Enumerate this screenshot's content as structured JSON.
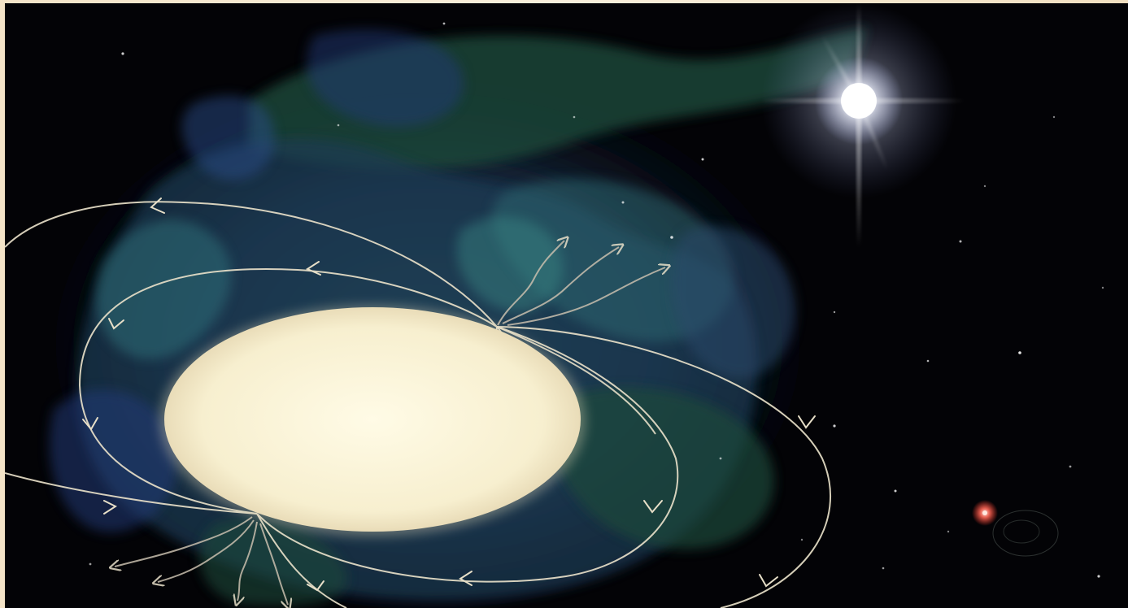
{
  "scene": {
    "colors": {
      "frame": "#f4e4c8",
      "space": "#030306",
      "star_core": "#fbf6dc",
      "field_line": "#e7dfc8",
      "nebula_green": "#1f4a3b",
      "nebula_blue": "#243a78",
      "nebula_teal": "#2e6a73",
      "bright_star": "#ffffff",
      "red_star": "#ff8a7a"
    },
    "icons": [
      "pulsar-core-icon",
      "magnetic-field-lines-icon",
      "emission-rays-icon",
      "bright-star-icon",
      "red-star-icon"
    ]
  }
}
